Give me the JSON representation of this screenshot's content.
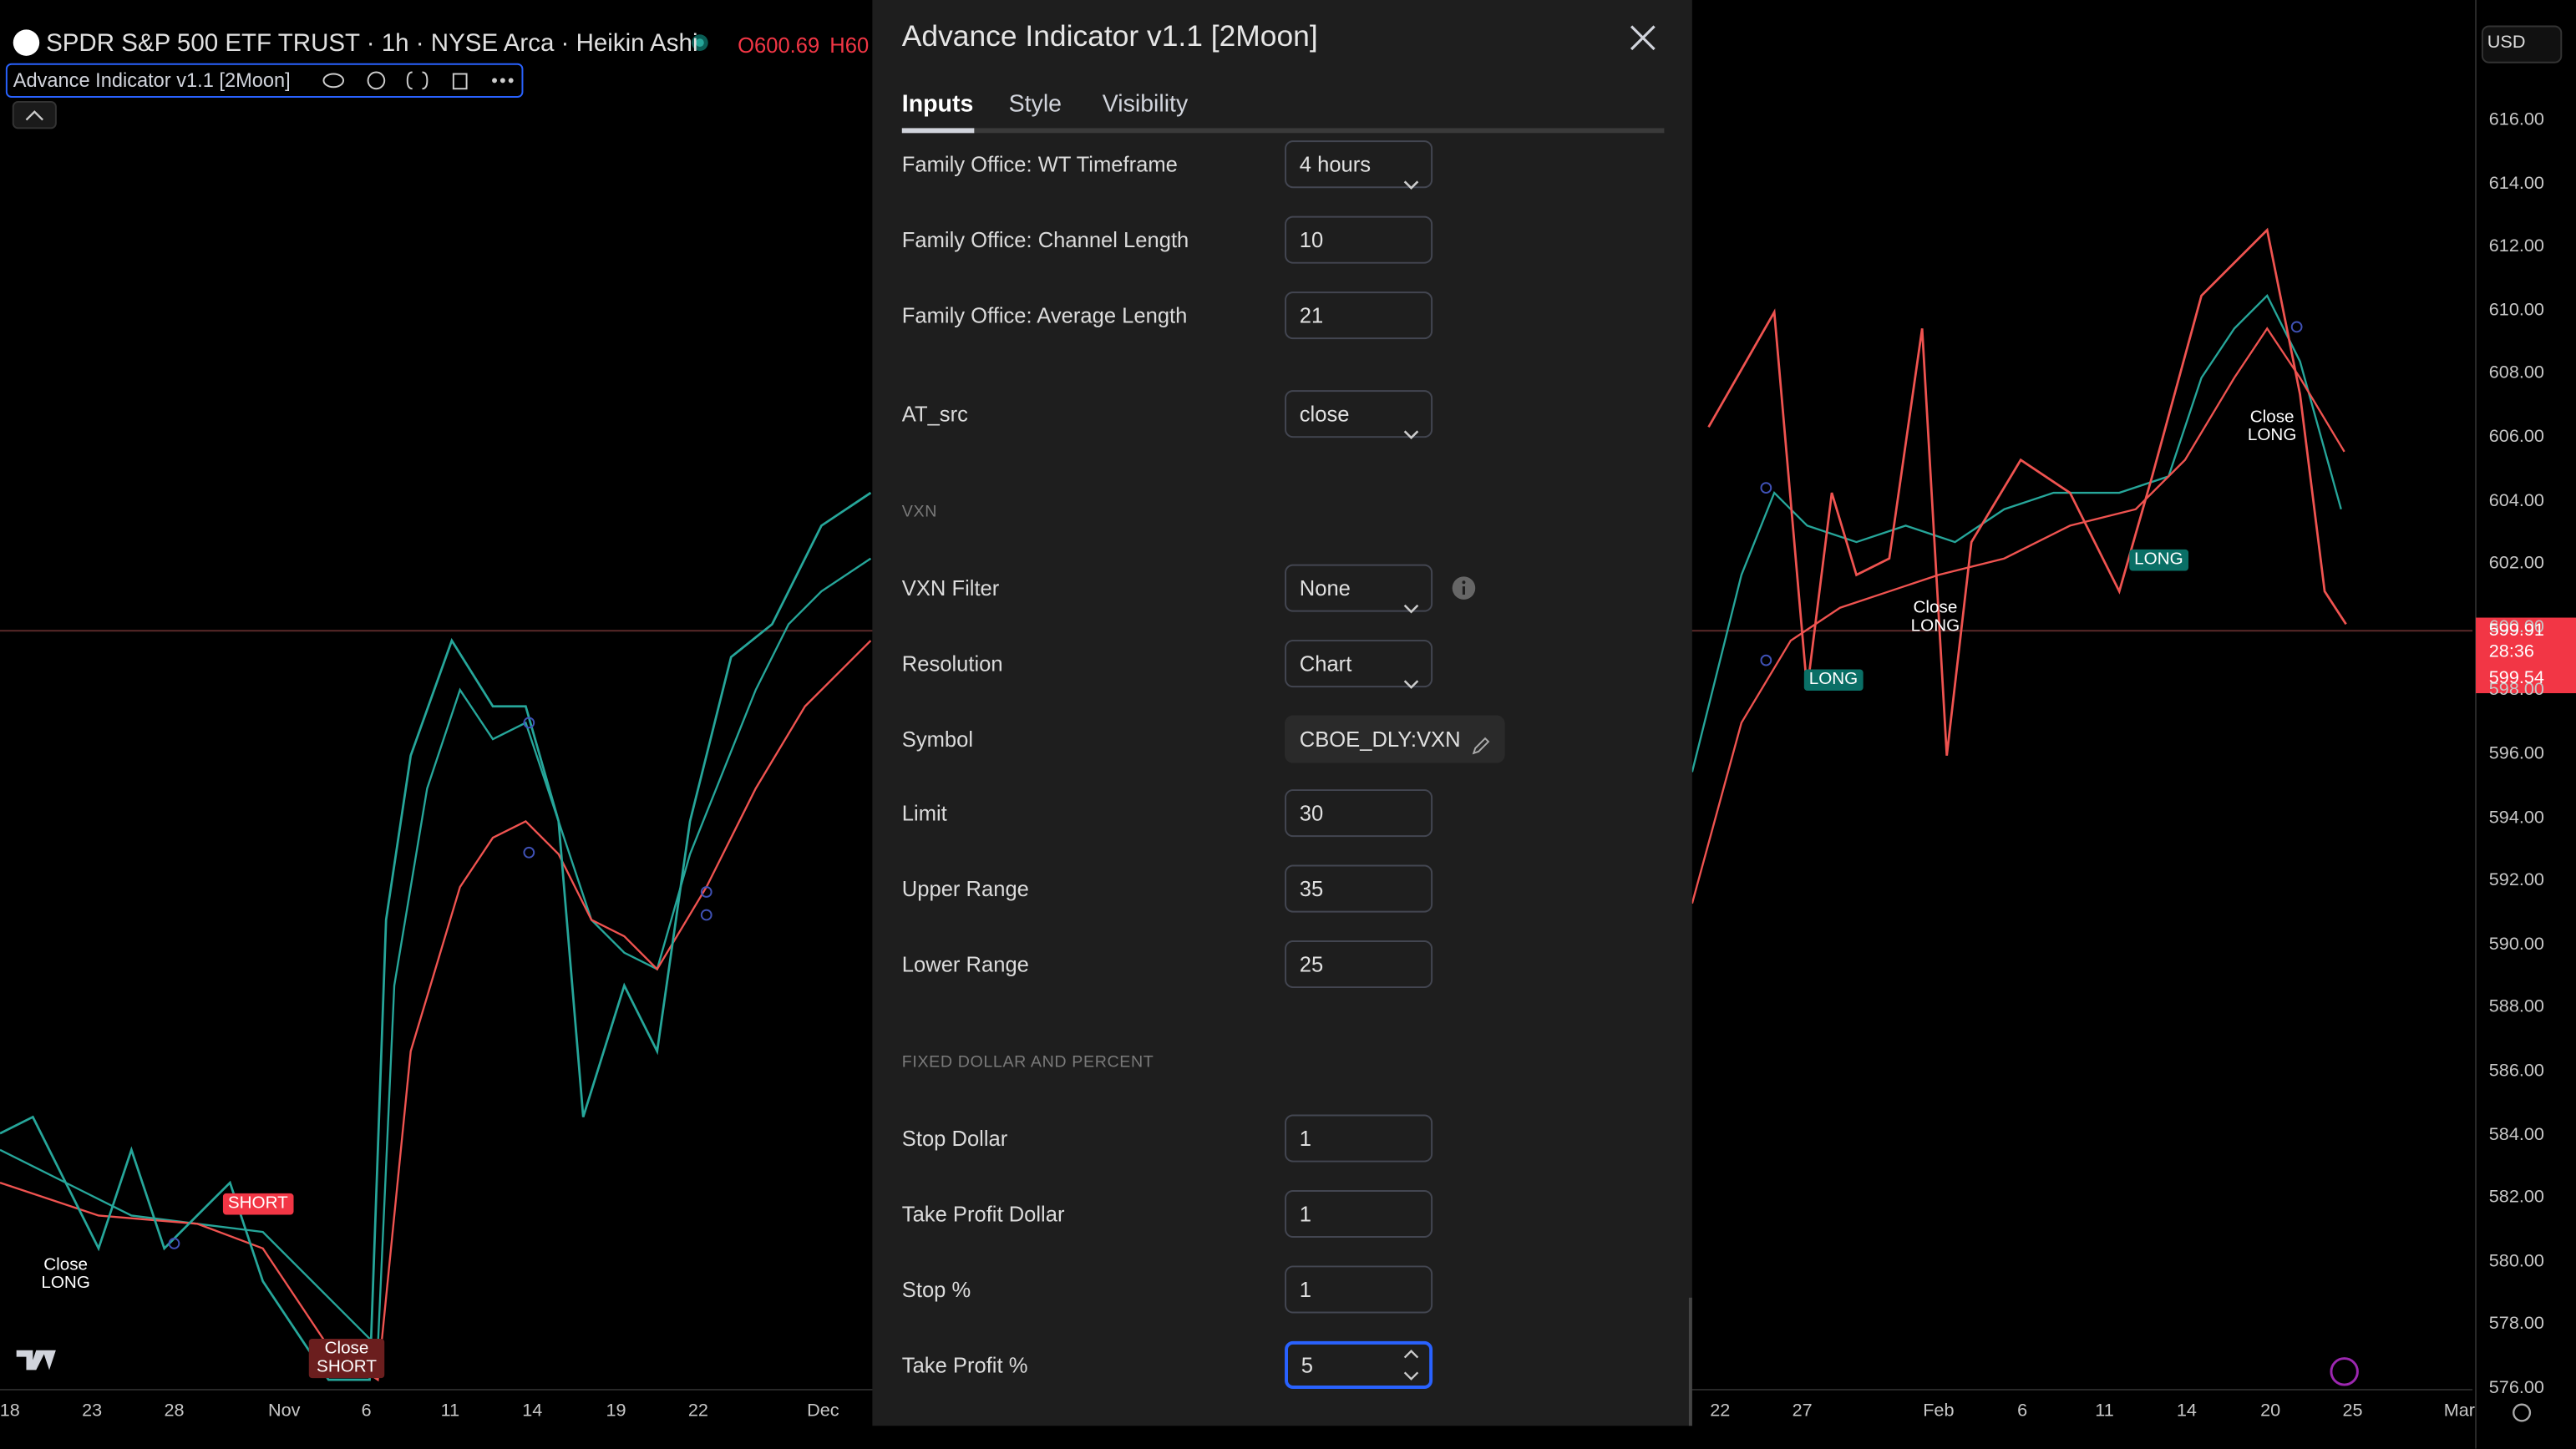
{
  "header": {
    "symbol_title": "SPDR S&P 500 ETF TRUST · 1h · NYSE Arca · Heikin Ashi",
    "open": "O600.69",
    "high": "H60",
    "indicator": "Advance Indicator v1.1 [2Moon]"
  },
  "price_axis": {
    "currency": "USD",
    "ticks": [
      "616.00",
      "614.00",
      "612.00",
      "610.00",
      "608.00",
      "606.00",
      "604.00",
      "602.00",
      "600.00",
      "598.00",
      "596.00",
      "594.00",
      "592.00",
      "590.00",
      "588.00",
      "586.00",
      "584.00",
      "582.00",
      "580.00",
      "578.00",
      "576.00"
    ],
    "last_price": "599.91",
    "countdown": "28:36",
    "bid_price": "599.54"
  },
  "time_axis": {
    "left": [
      "18",
      "23",
      "28",
      "Nov",
      "6",
      "11",
      "14",
      "19",
      "22",
      "Dec"
    ],
    "right": [
      "22",
      "27",
      "Feb",
      "6",
      "11",
      "14",
      "20",
      "25",
      "Mar"
    ]
  },
  "annotations": [
    "SHORT",
    "Close LONG",
    "Close SHORT",
    "LONG",
    "Close LONG",
    "LONG",
    "Close LONG"
  ],
  "dialog": {
    "title": "Advance Indicator v1.1 [2Moon]",
    "tabs": [
      "Inputs",
      "Style",
      "Visibility"
    ],
    "items": [
      {
        "label": "Family Office: WT Timeframe",
        "value": "4 hours",
        "kind": "select"
      },
      {
        "label": "Family Office: Channel Length",
        "value": "10",
        "kind": "input"
      },
      {
        "label": "Family Office: Average Length",
        "value": "21",
        "kind": "input"
      },
      {
        "label": "AT_src",
        "value": "close",
        "kind": "select"
      },
      {
        "section": "VXN"
      },
      {
        "label": "VXN Filter",
        "value": "None",
        "kind": "select"
      },
      {
        "label": "Resolution",
        "value": "Chart",
        "kind": "select"
      },
      {
        "label": "Symbol",
        "value": "CBOE_DLY:VXN",
        "kind": "symbol"
      },
      {
        "label": "Limit",
        "value": "30",
        "kind": "input"
      },
      {
        "label": "Upper Range",
        "value": "35",
        "kind": "input"
      },
      {
        "label": "Lower Range",
        "value": "25",
        "kind": "input"
      },
      {
        "section": "FIXED DOLLAR AND PERCENT"
      },
      {
        "label": "Stop Dollar",
        "value": "1",
        "kind": "input"
      },
      {
        "label": "Take Profit Dollar",
        "value": "1",
        "kind": "input"
      },
      {
        "label": "Stop %",
        "value": "1",
        "kind": "input"
      },
      {
        "label": "Take Profit %",
        "value": "5",
        "kind": "focused"
      }
    ]
  }
}
